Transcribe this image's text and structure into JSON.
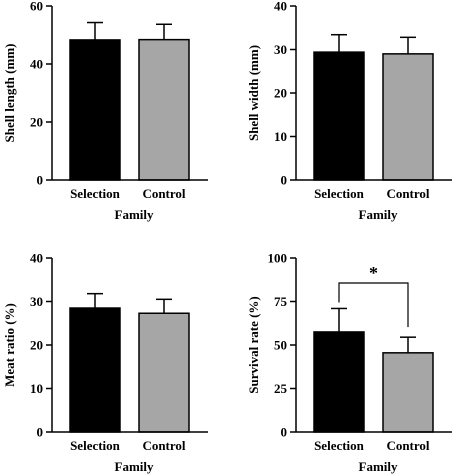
{
  "chart_data": [
    {
      "type": "bar",
      "categories": [
        "Selection",
        "Control"
      ],
      "values": [
        48.3,
        48.4
      ],
      "errors": [
        6,
        5.3
      ],
      "xlabel": "Family",
      "ylabel": "Shell length (mm)",
      "ylim": [
        0,
        60
      ],
      "yticks": [
        "0",
        "20",
        "40",
        "60"
      ],
      "colors": [
        "#000000",
        "#a6a6a6"
      ],
      "grid": false
    },
    {
      "type": "bar",
      "categories": [
        "Selection",
        "Control"
      ],
      "values": [
        29.4,
        29
      ],
      "errors": [
        4,
        3.8
      ],
      "xlabel": "Family",
      "ylabel": "Shell width (mm)",
      "ylim": [
        0,
        40
      ],
      "yticks": [
        "0",
        "10",
        "20",
        "30",
        "40"
      ],
      "colors": [
        "#000000",
        "#a6a6a6"
      ],
      "grid": false
    },
    {
      "type": "bar",
      "categories": [
        "Selection",
        "Control"
      ],
      "values": [
        28.5,
        27.3
      ],
      "errors": [
        3.3,
        3.2
      ],
      "xlabel": "Family",
      "ylabel": "Meat ratio (%)",
      "ylim": [
        0,
        40
      ],
      "yticks": [
        "0",
        "10",
        "20",
        "30",
        "40"
      ],
      "colors": [
        "#000000",
        "#a6a6a6"
      ],
      "grid": false
    },
    {
      "type": "bar",
      "categories": [
        "Selection",
        "Control"
      ],
      "values": [
        57.5,
        45.5
      ],
      "errors": [
        13.5,
        9
      ],
      "xlabel": "Family",
      "ylabel": "Survival rate (%)",
      "ylim": [
        0,
        100
      ],
      "yticks": [
        "0",
        "25",
        "50",
        "75",
        "100"
      ],
      "colors": [
        "#000000",
        "#a6a6a6"
      ],
      "grid": false,
      "significance": {
        "label": "*",
        "between": [
          "Selection",
          "Control"
        ]
      }
    }
  ]
}
